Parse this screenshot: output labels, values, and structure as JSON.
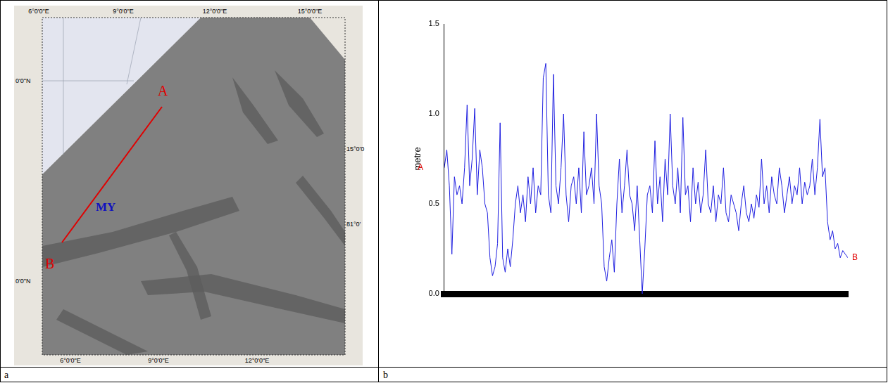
{
  "panel_letters": [
    "a",
    "b"
  ],
  "map": {
    "top_labels": [
      "6°0'0\"E",
      "9°0'0\"E",
      "12°0'0\"E",
      "15°0'0\"E"
    ],
    "bottom_labels": [
      "6°0'0\"E",
      "9°0'0\"E",
      "12°0'0\"E"
    ],
    "left_labels": [
      "0'0\"N",
      "0'0\"N"
    ],
    "right_labels": [
      "15°0'0",
      "81°0'"
    ],
    "route": {
      "start": "A",
      "end": "B"
    },
    "region": "MY"
  },
  "chart_data": {
    "type": "line",
    "y_label": "metre",
    "color": "#1f1fe0",
    "x": [
      0,
      1,
      2,
      3,
      4,
      5,
      6,
      7,
      8,
      9,
      10,
      11,
      12,
      13,
      14,
      15,
      16,
      17,
      18,
      19,
      20,
      21,
      22,
      23,
      24,
      25,
      26,
      27,
      28,
      29,
      30,
      31,
      32,
      33,
      34,
      35,
      36,
      37,
      38,
      39,
      40,
      41,
      42,
      43,
      44,
      45,
      46,
      47,
      48,
      49,
      50,
      51,
      52,
      53,
      54,
      55,
      56,
      57,
      58,
      59,
      60,
      61,
      62,
      63,
      64,
      65,
      66,
      67,
      68,
      69,
      70,
      71,
      72,
      73,
      74,
      75,
      76,
      77,
      78,
      79,
      80,
      81,
      82,
      83,
      84,
      85,
      86,
      87,
      88,
      89,
      90,
      91,
      92,
      93,
      94,
      95,
      96,
      97,
      98,
      99,
      100,
      101,
      102,
      103,
      104,
      105,
      106,
      107,
      108,
      109,
      110,
      111,
      112,
      113,
      114,
      115,
      116,
      117,
      118,
      119,
      120,
      121,
      122,
      123,
      124,
      125,
      126,
      127,
      128,
      129,
      130,
      131,
      132,
      133,
      134,
      135,
      136,
      137,
      138,
      139,
      140,
      141,
      142,
      143,
      144,
      145,
      146,
      147,
      148,
      149,
      150,
      151,
      152,
      153,
      154,
      155,
      156,
      157,
      158,
      159
    ],
    "values": [
      0.7,
      0.8,
      0.6,
      0.22,
      0.65,
      0.55,
      0.6,
      0.5,
      0.7,
      1.05,
      0.6,
      0.75,
      1.03,
      0.55,
      0.8,
      0.7,
      0.5,
      0.45,
      0.2,
      0.1,
      0.15,
      0.28,
      0.95,
      0.2,
      0.12,
      0.25,
      0.15,
      0.3,
      0.5,
      0.6,
      0.45,
      0.55,
      0.4,
      0.65,
      0.5,
      0.7,
      0.45,
      0.6,
      0.55,
      1.2,
      1.28,
      0.55,
      0.45,
      1.22,
      0.6,
      0.5,
      0.7,
      1.0,
      0.55,
      0.4,
      0.6,
      0.65,
      0.5,
      0.7,
      0.45,
      0.9,
      0.55,
      0.6,
      0.7,
      0.5,
      1.0,
      0.6,
      0.5,
      0.15,
      0.07,
      0.2,
      0.3,
      0.12,
      0.5,
      0.75,
      0.45,
      0.6,
      0.8,
      0.55,
      0.5,
      0.35,
      0.6,
      0.3,
      0.0,
      0.25,
      0.55,
      0.6,
      0.45,
      0.85,
      0.5,
      0.65,
      0.4,
      0.75,
      0.55,
      1.0,
      0.6,
      0.5,
      0.7,
      0.45,
      0.98,
      0.55,
      0.6,
      0.4,
      0.7,
      0.5,
      0.62,
      0.45,
      0.55,
      0.8,
      0.5,
      0.45,
      0.6,
      0.4,
      0.55,
      0.5,
      0.7,
      0.45,
      0.4,
      0.55,
      0.5,
      0.45,
      0.35,
      0.5,
      0.6,
      0.45,
      0.4,
      0.5,
      0.42,
      0.55,
      0.48,
      0.75,
      0.5,
      0.6,
      0.45,
      0.65,
      0.55,
      0.5,
      0.7,
      0.6,
      0.45,
      0.55,
      0.65,
      0.5,
      0.6,
      0.55,
      0.7,
      0.5,
      0.62,
      0.55,
      0.6,
      0.75,
      0.55,
      0.7,
      0.97,
      0.65,
      0.7,
      0.4,
      0.3,
      0.35,
      0.25,
      0.28,
      0.2,
      0.24,
      0.22,
      0.2
    ],
    "xlim": [
      0,
      159
    ],
    "ylim": [
      0,
      1.5
    ],
    "yticks": [
      {
        "value": 0,
        "label": "0.0"
      },
      {
        "value": 0.5,
        "label": "0.5"
      },
      {
        "value": 1,
        "label": "1.0"
      },
      {
        "value": 1.5,
        "label": "1.5"
      }
    ],
    "tick_labels": "y",
    "grid": false,
    "annotations": [
      {
        "text": "A",
        "x": 0,
        "y": 0.7
      },
      {
        "text": "B",
        "x": 159,
        "y": 0.2
      }
    ]
  }
}
